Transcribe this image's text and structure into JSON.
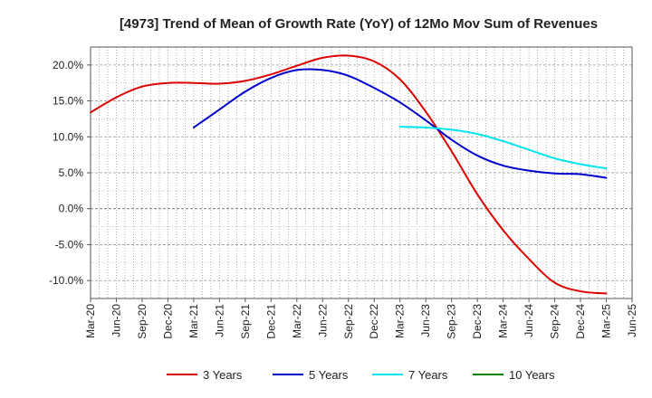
{
  "chart_data": {
    "type": "line",
    "title": "[4973]  Trend of Mean of Growth Rate (YoY) of 12Mo Mov Sum of Revenues",
    "xlabel": "",
    "ylabel": "",
    "ylim": [
      -12.5,
      22.5
    ],
    "yticks": [
      20,
      15,
      10,
      5,
      0,
      -5,
      -10
    ],
    "ytick_labels": [
      "20.0%",
      "15.0%",
      "10.0%",
      "5.0%",
      "0.0%",
      "-5.0%",
      "-10.0%"
    ],
    "x_tick_labels": [
      "Mar-20",
      "Jun-20",
      "Sep-20",
      "Dec-20",
      "Mar-21",
      "Jun-21",
      "Sep-21",
      "Dec-21",
      "Mar-22",
      "Jun-22",
      "Sep-22",
      "Dec-22",
      "Mar-23",
      "Jun-23",
      "Sep-23",
      "Dec-23",
      "Mar-24",
      "Jun-24",
      "Sep-24",
      "Dec-24",
      "Mar-25",
      "Jun-25"
    ],
    "grid": true,
    "legend_position": "bottom",
    "series": [
      {
        "name": "3 Years",
        "color": "#dd0000",
        "x": [
          0,
          1,
          2,
          3,
          4,
          5,
          6,
          7,
          8,
          9,
          10,
          11,
          12,
          13,
          14,
          15,
          16,
          17,
          18,
          19,
          20
        ],
        "values": [
          13.4,
          15.5,
          17.0,
          17.5,
          17.5,
          17.4,
          17.8,
          18.7,
          19.9,
          21.0,
          21.3,
          20.5,
          18.0,
          13.5,
          8.0,
          2.0,
          -3.0,
          -7.0,
          -10.3,
          -11.5,
          -11.8
        ]
      },
      {
        "name": "5 Years",
        "color": "#0000cc",
        "x": [
          4,
          5,
          6,
          7,
          8,
          9,
          10,
          11,
          12,
          13,
          14,
          15,
          16,
          17,
          18,
          19,
          20
        ],
        "values": [
          11.3,
          13.8,
          16.3,
          18.2,
          19.3,
          19.3,
          18.5,
          16.8,
          14.8,
          12.3,
          9.6,
          7.4,
          6.0,
          5.3,
          4.9,
          4.8,
          4.3
        ]
      },
      {
        "name": "7 Years",
        "color": "#00e5ee",
        "x": [
          12,
          13,
          14,
          15,
          16,
          17,
          18,
          19,
          20
        ],
        "values": [
          11.4,
          11.3,
          11.0,
          10.4,
          9.4,
          8.2,
          7.0,
          6.2,
          5.6
        ]
      },
      {
        "name": "10 Years",
        "color": "#008000",
        "x": [],
        "values": []
      }
    ]
  }
}
